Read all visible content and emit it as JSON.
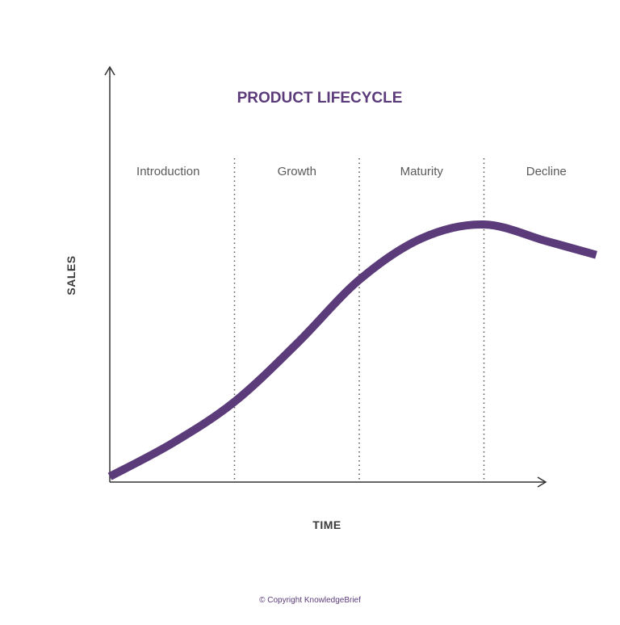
{
  "chart_data": {
    "type": "line",
    "title": "PRODUCT LIFECYCLE",
    "xlabel": "TIME",
    "ylabel": "SALES",
    "stages": [
      "Introduction",
      "Growth",
      "Maturity",
      "Decline"
    ],
    "stage_boundaries": [
      1,
      2,
      3
    ],
    "xlim": [
      0,
      4.35
    ],
    "ylim": [
      0,
      1
    ],
    "grid": false,
    "series": [
      {
        "x": [
          0,
          0.5,
          1,
          1.5,
          2,
          2.5,
          3,
          3.5,
          3.9
        ],
        "y": [
          0.02,
          0.14,
          0.29,
          0.5,
          0.73,
          0.88,
          0.93,
          0.87,
          0.82
        ]
      }
    ]
  },
  "footer": {
    "copyright": "© Copyright KnowledgeBrief"
  },
  "colors": {
    "accent": "#5b3b7a",
    "axis": "#333333",
    "divider": "#555555"
  }
}
